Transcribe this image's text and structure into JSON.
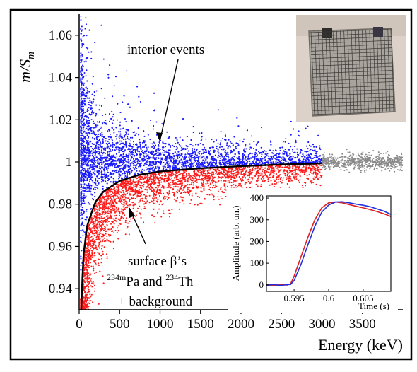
{
  "chart_data": [
    {
      "type": "scatter",
      "title": "",
      "xlabel": "Energy (keV)",
      "ylabel": "m/S_m",
      "ylabel_parts": {
        "main": "m/S",
        "sub": "m"
      },
      "xlim": [
        0,
        4000
      ],
      "ylim": [
        0.93,
        1.07
      ],
      "x_ticks": [
        0,
        500,
        1000,
        1500,
        2000,
        2500,
        3000,
        3500
      ],
      "x_tick_labels": [
        "0",
        "500",
        "1000",
        "1500",
        "2000",
        "2500",
        "3000",
        "3500"
      ],
      "y_ticks": [
        0.94,
        0.96,
        0.98,
        1.0,
        1.02,
        1.04,
        1.06
      ],
      "y_tick_labels": [
        "0.94",
        "0.96",
        "0.98",
        "1",
        "1.02",
        "1.04",
        "1.06"
      ],
      "grid": false,
      "series": [
        {
          "color": "#1a1aff",
          "x_range": [
            20,
            3000
          ],
          "y_center": 1.0,
          "description_points": [
            [
              50,
              1.06
            ],
            [
              100,
              1.03
            ],
            [
              200,
              1.015
            ],
            [
              500,
              1.006
            ],
            [
              1000,
              1.003
            ],
            [
              2000,
              1.001
            ],
            [
              3000,
              1.0
            ]
          ]
        },
        {
          "color": "#ff1a1a",
          "x_range": [
            20,
            3000
          ],
          "description_points": [
            [
              50,
              0.935
            ],
            [
              100,
              0.96
            ],
            [
              300,
              0.982
            ],
            [
              600,
              0.99
            ],
            [
              1000,
              0.994
            ],
            [
              2000,
              0.998
            ],
            [
              3000,
              0.999
            ]
          ]
        },
        {
          "color": "#8a8a8a",
          "x_range": [
            3000,
            4000
          ],
          "y_center": 1.0
        }
      ],
      "cut_curve": {
        "color": "#000000",
        "points": [
          [
            25,
            0.93
          ],
          [
            50,
            0.955
          ],
          [
            100,
            0.97
          ],
          [
            200,
            0.981
          ],
          [
            300,
            0.986
          ],
          [
            500,
            0.991
          ],
          [
            750,
            0.994
          ],
          [
            1000,
            0.9955
          ],
          [
            1500,
            0.997
          ],
          [
            2000,
            0.998
          ],
          [
            2500,
            0.9988
          ],
          [
            3000,
            0.9993
          ]
        ]
      },
      "annotations": {
        "interior": "interior events",
        "surface_line1": "surface β’s",
        "surface_line2_sup1": "234m",
        "surface_line2_text1": "Pa and ",
        "surface_line2_sup2": "234",
        "surface_line2_text2": "Th",
        "surface_line3": "+ background"
      }
    },
    {
      "type": "line",
      "xlabel": "Time (s)",
      "ylabel": "Amplitude (arb. un.)",
      "xlim": [
        0.591,
        0.609
      ],
      "ylim": [
        -30,
        410
      ],
      "x_ticks": [
        0.595,
        0.6,
        0.605
      ],
      "x_tick_labels": [
        "0.595",
        "0.6",
        "0.605"
      ],
      "y_ticks": [
        0,
        100,
        200,
        300,
        400
      ],
      "y_tick_labels": [
        "0",
        "100",
        "200",
        "300",
        "400"
      ],
      "series": [
        {
          "color": "#e02020",
          "x": [
            0.591,
            0.592,
            0.593,
            0.594,
            0.5945,
            0.595,
            0.596,
            0.597,
            0.598,
            0.599,
            0.6,
            0.601,
            0.602,
            0.603,
            0.604,
            0.605,
            0.606,
            0.607,
            0.608,
            0.609
          ],
          "y": [
            0,
            -3,
            2,
            -1,
            5,
            40,
            130,
            220,
            300,
            355,
            378,
            382,
            378,
            370,
            362,
            355,
            347,
            338,
            328,
            315
          ]
        },
        {
          "color": "#2030e0",
          "x": [
            0.591,
            0.592,
            0.593,
            0.594,
            0.5945,
            0.595,
            0.596,
            0.597,
            0.598,
            0.599,
            0.6,
            0.601,
            0.602,
            0.603,
            0.604,
            0.605,
            0.606,
            0.607,
            0.608,
            0.609
          ],
          "y": [
            -2,
            2,
            -3,
            1,
            2,
            20,
            95,
            185,
            270,
            335,
            368,
            382,
            383,
            378,
            372,
            367,
            360,
            350,
            340,
            325
          ]
        }
      ]
    }
  ],
  "photo_inset": {
    "icon": "detector-crystal-photo",
    "colors": {
      "background": "#d9cfc6",
      "crystal": "#a9a49d",
      "grid": "#3a3836"
    }
  }
}
